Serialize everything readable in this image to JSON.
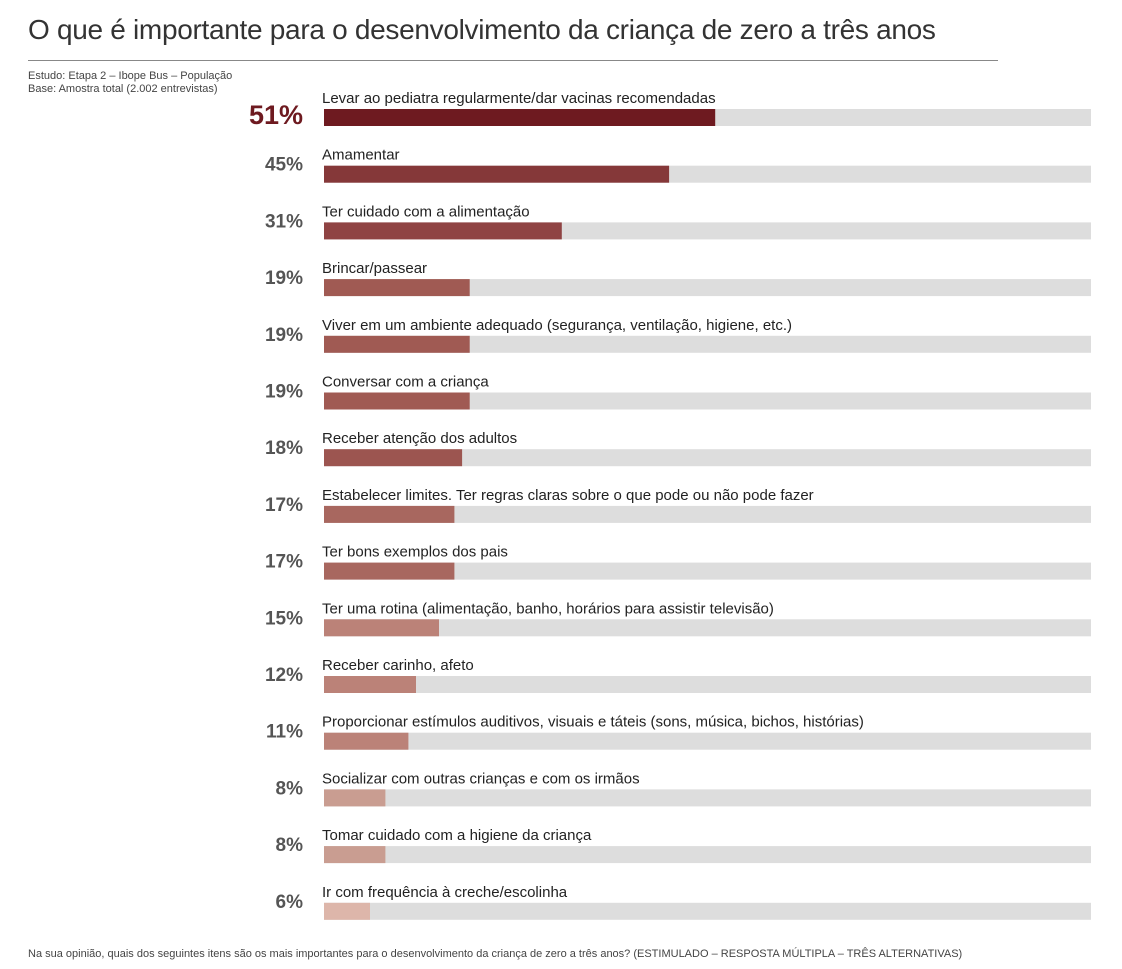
{
  "title": "O que é importante para o desenvolvimento da criança de zero a três anos",
  "study": "Estudo: Etapa 2 – Ibope Bus – População",
  "base": "Base: Amostra total (2.002 entrevistas)",
  "footnote": "Na sua opinião, quais dos seguintes itens são os mais importantes para o desenvolvimento da criança de zero a três anos? (ESTIMULADO – RESPOSTA MÚLTIPLA – TRÊS ALTERNATIVAS)",
  "chart_data": {
    "type": "bar",
    "orientation": "horizontal",
    "title": "O que é importante para o desenvolvimento da criança de zero a três anos",
    "unit": "%",
    "xlim": [
      0,
      100
    ],
    "categories": [
      "Levar ao pediatra regularmente/dar vacinas recomendadas",
      "Amamentar",
      "Ter cuidado com a alimentação",
      "Brincar/passear",
      "Viver em um ambiente adequado (segurança, ventilação, higiene, etc.)",
      "Conversar com a criança",
      "Receber atenção dos adultos",
      "Estabelecer limites. Ter regras claras sobre o que pode ou não pode fazer",
      "Ter bons exemplos dos pais",
      "Ter uma rotina (alimentação, banho, horários para assistir televisão)",
      "Receber carinho, afeto",
      "Proporcionar estímulos auditivos, visuais e táteis (sons, música, bichos, histórias)",
      "Socializar com outras crianças e com os irmãos",
      "Tomar cuidado com a higiene da criança",
      "Ir com frequência à creche/escolinha"
    ],
    "values": [
      51,
      45,
      31,
      19,
      19,
      19,
      18,
      17,
      17,
      15,
      12,
      11,
      8,
      8,
      6
    ],
    "value_labels": [
      "51%",
      "45%",
      "31%",
      "19%",
      "19%",
      "19%",
      "18%",
      "17%",
      "17%",
      "15%",
      "12%",
      "11%",
      "8%",
      "8%",
      "6%"
    ],
    "colors": [
      "#6e1a20",
      "#853839",
      "#8f4343",
      "#a05a53",
      "#a05a53",
      "#a05a53",
      "#9c5550",
      "#a8675f",
      "#a8675f",
      "#bb8278",
      "#bb8278",
      "#bb8278",
      "#c99d91",
      "#c99d91",
      "#ddb6aa"
    ],
    "track_color": "#dddddd",
    "highlight_color": "#6e1a20"
  }
}
